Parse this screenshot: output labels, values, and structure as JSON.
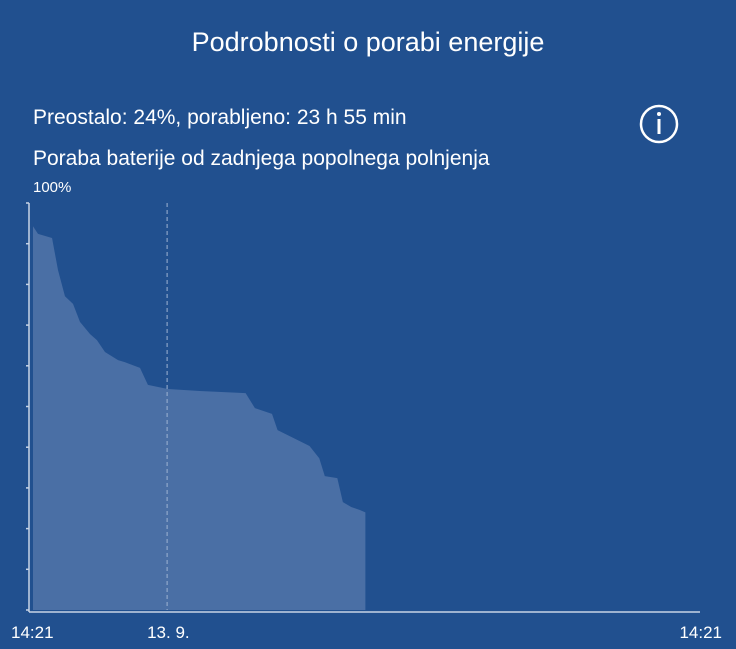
{
  "header": {
    "title": "Podrobnosti o porabi energije"
  },
  "summary": "Preostalo: 24%, porabljeno: 23 h 55 min",
  "chart_data": {
    "type": "area",
    "title": "Poraba baterije od zadnjega popolnega polnjenja",
    "x": [
      0,
      0.36,
      1.37,
      1.8,
      2.3,
      2.88,
      3.38,
      4.1,
      4.6,
      5.18,
      6.12,
      6.6,
      7.7,
      8.27,
      9.7,
      12.0,
      15.3,
      15.97,
      17.2,
      17.6,
      18.6,
      19.9,
      20.6,
      21.0,
      21.9,
      22.3,
      22.9,
      23.5,
      23.92
    ],
    "values": [
      94.3,
      92.4,
      91.4,
      83.5,
      77.1,
      75.2,
      70.8,
      67.8,
      66.3,
      63.4,
      61.4,
      60.9,
      59.5,
      55.3,
      54.3,
      53.8,
      53.3,
      49.6,
      48.2,
      44.2,
      42.5,
      40.3,
      37.3,
      32.9,
      32.4,
      26.5,
      25.3,
      24.6,
      24
    ],
    "color": "#4a6fa5",
    "xlim": [
      0,
      48
    ],
    "xticks": [
      {
        "value": 0,
        "label": "14:21"
      },
      {
        "value": 9.65,
        "label": "13. 9."
      },
      {
        "value": 48,
        "label": "14:21"
      }
    ],
    "ylim": [
      0,
      100
    ],
    "yticks": [
      0,
      10,
      20,
      30,
      40,
      50,
      60,
      70,
      80,
      90,
      {
        "value": 100,
        "label": "100%"
      }
    ]
  }
}
